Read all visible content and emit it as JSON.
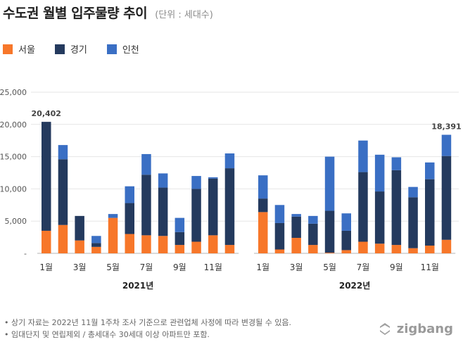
{
  "header": {
    "title": "수도권 월별 입주물량 추이",
    "unit": "(단위 : 세대수)"
  },
  "colors": {
    "seoul": "#f7772a",
    "gyeonggi": "#243a5e",
    "incheon": "#3a6fc4",
    "grid": "#e6e6e6",
    "axis": "#b5b5b5"
  },
  "chart_data": {
    "type": "bar",
    "stacked": true,
    "ylim": [
      0,
      25000
    ],
    "yticks": [
      "-",
      "5,000",
      "10,000",
      "15,000",
      "20,000",
      "25,000"
    ],
    "grid": true,
    "legend_position": "top-left",
    "groups": [
      {
        "label": "2021년",
        "categories": [
          "1월",
          "2월",
          "3월",
          "4월",
          "5월",
          "6월",
          "7월",
          "8월",
          "9월",
          "10월",
          "11월",
          "12월"
        ],
        "tick_labels": [
          "1월",
          "",
          "3월",
          "",
          "5월",
          "",
          "7월",
          "",
          "9월",
          "",
          "11월",
          ""
        ],
        "series": [
          {
            "name": "서울",
            "values": [
              3500,
              4400,
              2000,
              1000,
              5500,
              3000,
              2800,
              2700,
              1300,
              1800,
              2800,
              1300
            ]
          },
          {
            "name": "경기",
            "values": [
              16900,
              10200,
              3800,
              600,
              0,
              4800,
              9400,
              7500,
              2000,
              8200,
              8800,
              11900
            ]
          },
          {
            "name": "인천",
            "values": [
              0,
              2200,
              0,
              1100,
              600,
              2600,
              3200,
              2200,
              2200,
              2000,
              200,
              2300
            ]
          }
        ],
        "annotations": [
          {
            "index": 0,
            "text": "20,402"
          }
        ]
      },
      {
        "label": "2022년",
        "categories": [
          "1월",
          "2월",
          "3월",
          "4월",
          "5월",
          "6월",
          "7월",
          "8월",
          "9월",
          "10월",
          "11월",
          "12월"
        ],
        "tick_labels": [
          "1월",
          "",
          "3월",
          "",
          "5월",
          "",
          "7월",
          "",
          "9월",
          "",
          "11월",
          ""
        ],
        "series": [
          {
            "name": "서울",
            "values": [
              6400,
              600,
              2400,
              1300,
              100,
              500,
              1800,
              1500,
              1300,
              800,
              1200,
              2100
            ]
          },
          {
            "name": "경기",
            "values": [
              2100,
              4100,
              3300,
              3300,
              6500,
              3000,
              10800,
              8100,
              11600,
              7900,
              10300,
              13000
            ]
          },
          {
            "name": "인천",
            "values": [
              3600,
              2800,
              400,
              1200,
              8400,
              2700,
              4900,
              5700,
              2000,
              1600,
              2600,
              3291
            ]
          }
        ],
        "annotations": [
          {
            "index": 11,
            "text": "18,391"
          }
        ]
      }
    ]
  },
  "notes": [
    "상기 자료는 2022년 11월 1주차 조사 기준으로 관련업체 사정에 따라 변경될 수 있음.",
    "임대단지 및 연립제외 / 총세대수 30세대 이상 아파트만 포함."
  ],
  "brand": {
    "name": "zigbang"
  }
}
